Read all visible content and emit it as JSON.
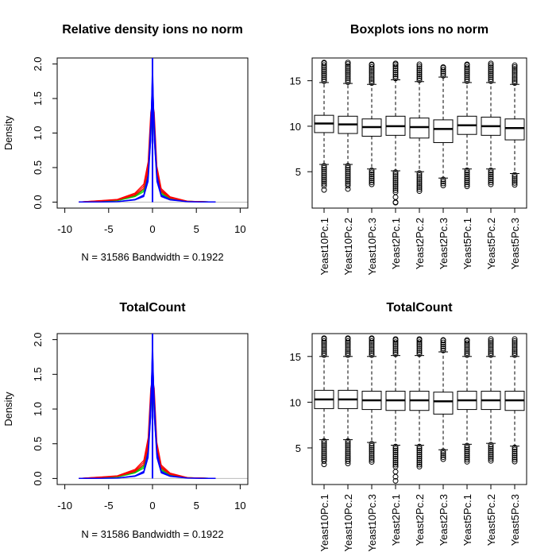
{
  "chart_data": [
    {
      "type": "line",
      "title": "Relative density ions no norm",
      "xlabel": "N = 31586   Bandwidth = 0.1922",
      "ylabel": "Density",
      "xlim": [
        -10,
        10
      ],
      "ylim": [
        0,
        2.0
      ],
      "x_ticks": [
        "-10",
        "-5",
        "0",
        "5",
        "10"
      ],
      "y_ticks": [
        "0.0",
        "0.5",
        "1.0",
        "1.5",
        "2.0"
      ],
      "series_colors": [
        "#0000ff",
        "#ff0000",
        "#00cc00"
      ],
      "series": [
        {
          "x": [
            -8.4,
            -4,
            -2,
            -1,
            -0.5,
            -0.2,
            0,
            0.2,
            0.5,
            1,
            2,
            4,
            7.2
          ],
          "values": [
            0,
            0.005,
            0.03,
            0.08,
            0.3,
            0.9,
            2.05,
            0.9,
            0.3,
            0.08,
            0.03,
            0.005,
            0
          ]
        },
        {
          "x": [
            -8.4,
            -4,
            -2,
            -1,
            -0.5,
            -0.2,
            0,
            0.2,
            0.5,
            1,
            2,
            4,
            7.2
          ],
          "values": [
            0,
            0.03,
            0.1,
            0.2,
            0.45,
            1.0,
            1.7,
            1.0,
            0.4,
            0.15,
            0.06,
            0.01,
            0
          ]
        },
        {
          "x": [
            -8.4,
            -4,
            -2,
            -1,
            -0.5,
            -0.2,
            0,
            0.2,
            0.5,
            1,
            2,
            4,
            7.2
          ],
          "values": [
            0,
            0.02,
            0.08,
            0.15,
            0.4,
            0.9,
            1.6,
            0.9,
            0.35,
            0.12,
            0.05,
            0.01,
            0
          ]
        }
      ]
    },
    {
      "type": "boxplot",
      "title": "Boxplots ions no norm",
      "ylim": [
        1,
        17.5
      ],
      "y_ticks": [
        "5",
        "10",
        "15"
      ],
      "categories": [
        "Yeast10Pc.1",
        "Yeast10Pc.2",
        "Yeast10Pc.3",
        "Yeast2Pc.1",
        "Yeast2Pc.2",
        "Yeast2Pc.3",
        "Yeast5Pc.1",
        "Yeast5Pc.2",
        "Yeast5Pc.3"
      ],
      "boxes": [
        {
          "min": 3.0,
          "lower_whisker": 5.8,
          "q1": 9.3,
          "median": 10.3,
          "q3": 11.2,
          "upper_whisker": 14.8,
          "max": 17.0
        },
        {
          "min": 3.1,
          "lower_whisker": 5.8,
          "q1": 9.2,
          "median": 10.2,
          "q3": 11.1,
          "upper_whisker": 14.7,
          "max": 17.0
        },
        {
          "min": 3.5,
          "lower_whisker": 5.3,
          "q1": 8.9,
          "median": 9.9,
          "q3": 10.8,
          "upper_whisker": 14.6,
          "max": 16.8
        },
        {
          "min": 1.6,
          "lower_whisker": 5.1,
          "q1": 9.0,
          "median": 10.0,
          "q3": 11.1,
          "upper_whisker": 15.1,
          "max": 16.9
        },
        {
          "min": 2.8,
          "lower_whisker": 5.0,
          "q1": 8.7,
          "median": 9.9,
          "q3": 10.9,
          "upper_whisker": 14.9,
          "max": 16.8
        },
        {
          "min": 3.3,
          "lower_whisker": 4.3,
          "q1": 8.2,
          "median": 9.7,
          "q3": 10.7,
          "upper_whisker": 15.4,
          "max": 16.5
        },
        {
          "min": 3.3,
          "lower_whisker": 5.3,
          "q1": 9.1,
          "median": 10.1,
          "q3": 11.1,
          "upper_whisker": 14.8,
          "max": 16.8
        },
        {
          "min": 3.5,
          "lower_whisker": 5.3,
          "q1": 9.0,
          "median": 10.0,
          "q3": 11.0,
          "upper_whisker": 14.8,
          "max": 16.9
        },
        {
          "min": 3.4,
          "lower_whisker": 4.8,
          "q1": 8.5,
          "median": 9.8,
          "q3": 10.8,
          "upper_whisker": 14.6,
          "max": 16.7
        }
      ]
    },
    {
      "type": "line",
      "title": "TotalCount",
      "xlabel": "N = 31586   Bandwidth = 0.1922",
      "ylabel": "Density",
      "xlim": [
        -10,
        10
      ],
      "ylim": [
        0,
        2.0
      ],
      "x_ticks": [
        "-10",
        "-5",
        "0",
        "5",
        "10"
      ],
      "y_ticks": [
        "0.0",
        "0.5",
        "1.0",
        "1.5",
        "2.0"
      ],
      "series_colors": [
        "#0000ff",
        "#ff0000",
        "#00cc00"
      ],
      "series": [
        {
          "x": [
            -8.4,
            -4,
            -2,
            -1,
            -0.5,
            -0.2,
            0,
            0.2,
            0.5,
            1,
            2,
            4,
            7.2
          ],
          "values": [
            0,
            0.005,
            0.03,
            0.08,
            0.3,
            0.9,
            2.05,
            0.9,
            0.3,
            0.08,
            0.03,
            0.005,
            0
          ]
        },
        {
          "x": [
            -8.4,
            -4,
            -2,
            -1,
            -0.5,
            -0.2,
            0,
            0.2,
            0.5,
            1,
            2,
            4,
            7.2
          ],
          "values": [
            0,
            0.03,
            0.1,
            0.2,
            0.45,
            1.0,
            1.7,
            1.0,
            0.4,
            0.15,
            0.06,
            0.01,
            0
          ]
        },
        {
          "x": [
            -8.4,
            -4,
            -2,
            -1,
            -0.5,
            -0.2,
            0,
            0.2,
            0.5,
            1,
            2,
            4,
            7.2
          ],
          "values": [
            0,
            0.02,
            0.08,
            0.15,
            0.4,
            0.9,
            1.6,
            0.9,
            0.35,
            0.12,
            0.05,
            0.01,
            0
          ]
        }
      ]
    },
    {
      "type": "boxplot",
      "title": "TotalCount",
      "ylim": [
        1,
        17.5
      ],
      "y_ticks": [
        "5",
        "10",
        "15"
      ],
      "categories": [
        "Yeast10Pc.1",
        "Yeast10Pc.2",
        "Yeast10Pc.3",
        "Yeast2Pc.1",
        "Yeast2Pc.2",
        "Yeast2Pc.3",
        "Yeast5Pc.1",
        "Yeast5Pc.2",
        "Yeast5Pc.3"
      ],
      "boxes": [
        {
          "min": 3.2,
          "lower_whisker": 5.9,
          "q1": 9.3,
          "median": 10.3,
          "q3": 11.3,
          "upper_whisker": 15.0,
          "max": 17.0
        },
        {
          "min": 3.3,
          "lower_whisker": 5.9,
          "q1": 9.3,
          "median": 10.3,
          "q3": 11.3,
          "upper_whisker": 15.0,
          "max": 17.0
        },
        {
          "min": 3.4,
          "lower_whisker": 5.6,
          "q1": 9.2,
          "median": 10.2,
          "q3": 11.2,
          "upper_whisker": 15.0,
          "max": 17.0
        },
        {
          "min": 1.4,
          "lower_whisker": 5.3,
          "q1": 9.1,
          "median": 10.2,
          "q3": 11.2,
          "upper_whisker": 15.1,
          "max": 16.9
        },
        {
          "min": 2.9,
          "lower_whisker": 5.3,
          "q1": 9.1,
          "median": 10.2,
          "q3": 11.2,
          "upper_whisker": 15.1,
          "max": 16.9
        },
        {
          "min": 3.6,
          "lower_whisker": 4.8,
          "q1": 8.7,
          "median": 10.1,
          "q3": 11.1,
          "upper_whisker": 15.5,
          "max": 16.8
        },
        {
          "min": 3.3,
          "lower_whisker": 5.4,
          "q1": 9.2,
          "median": 10.2,
          "q3": 11.2,
          "upper_whisker": 15.0,
          "max": 16.8
        },
        {
          "min": 3.4,
          "lower_whisker": 5.5,
          "q1": 9.2,
          "median": 10.2,
          "q3": 11.2,
          "upper_whisker": 15.0,
          "max": 16.9
        },
        {
          "min": 3.3,
          "lower_whisker": 5.2,
          "q1": 9.1,
          "median": 10.2,
          "q3": 11.2,
          "upper_whisker": 15.0,
          "max": 16.9
        }
      ]
    }
  ]
}
